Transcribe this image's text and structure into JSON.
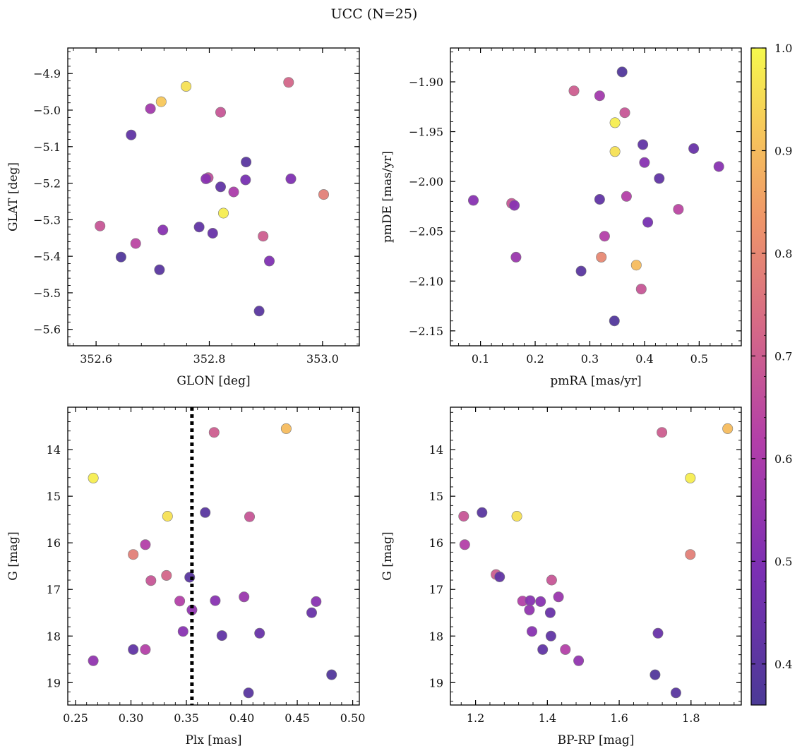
{
  "title": "UCC (N=25)",
  "colorbar": {
    "vmin": 0.36,
    "vmax": 1.0,
    "ticks": [
      "0.4",
      "0.5",
      "0.6",
      "0.7",
      "0.8",
      "0.9",
      "1.0"
    ],
    "colormap": "plasma"
  },
  "chart_data": [
    {
      "type": "scatter",
      "xlabel": "GLON [deg]",
      "ylabel": "GLAT [deg]",
      "xlim": [
        352.55,
        353.065
      ],
      "ylim": [
        -5.645,
        -4.83
      ],
      "x_ticks": [
        "352.6",
        "352.8",
        "353.0"
      ],
      "y_ticks": [
        "-4.9",
        "-5.0",
        "-5.1",
        "-5.2",
        "-5.3",
        "-5.4",
        "-5.5",
        "-5.6"
      ],
      "points": [
        {
          "x": 352.759,
          "y": -4.935,
          "p": 0.96
        },
        {
          "x": 352.715,
          "y": -4.977,
          "p": 0.92
        },
        {
          "x": 352.94,
          "y": -4.924,
          "p": 0.72
        },
        {
          "x": 352.696,
          "y": -4.996,
          "p": 0.58
        },
        {
          "x": 352.82,
          "y": -5.006,
          "p": 0.68
        },
        {
          "x": 352.662,
          "y": -5.068,
          "p": 0.42
        },
        {
          "x": 352.865,
          "y": -5.142,
          "p": 0.4
        },
        {
          "x": 352.798,
          "y": -5.185,
          "p": 0.66
        },
        {
          "x": 352.794,
          "y": -5.188,
          "p": 0.52
        },
        {
          "x": 352.864,
          "y": -5.191,
          "p": 0.48
        },
        {
          "x": 352.944,
          "y": -5.188,
          "p": 0.5
        },
        {
          "x": 352.82,
          "y": -5.21,
          "p": 0.42
        },
        {
          "x": 352.843,
          "y": -5.224,
          "p": 0.6
        },
        {
          "x": 353.002,
          "y": -5.231,
          "p": 0.78
        },
        {
          "x": 352.825,
          "y": -5.282,
          "p": 0.98
        },
        {
          "x": 352.607,
          "y": -5.317,
          "p": 0.68
        },
        {
          "x": 352.782,
          "y": -5.32,
          "p": 0.42
        },
        {
          "x": 352.718,
          "y": -5.328,
          "p": 0.52
        },
        {
          "x": 352.806,
          "y": -5.337,
          "p": 0.44
        },
        {
          "x": 352.895,
          "y": -5.345,
          "p": 0.7
        },
        {
          "x": 352.67,
          "y": -5.365,
          "p": 0.64
        },
        {
          "x": 352.644,
          "y": -5.402,
          "p": 0.38
        },
        {
          "x": 352.906,
          "y": -5.413,
          "p": 0.5
        },
        {
          "x": 352.712,
          "y": -5.437,
          "p": 0.4
        },
        {
          "x": 352.888,
          "y": -5.55,
          "p": 0.4
        }
      ]
    },
    {
      "type": "scatter",
      "xlabel": "pmRA [mas/yr]",
      "ylabel": "pmDE [mas/yr]",
      "xlim": [
        0.045,
        0.577
      ],
      "ylim": [
        -2.165,
        -1.866
      ],
      "x_ticks": [
        "0.1",
        "0.2",
        "0.3",
        "0.4",
        "0.5"
      ],
      "y_ticks": [
        "-1.90",
        "-1.95",
        "-2.00",
        "-2.05",
        "-2.10",
        "-2.15"
      ],
      "points": [
        {
          "x": 0.359,
          "y": -1.89,
          "p": 0.38
        },
        {
          "x": 0.271,
          "y": -1.909,
          "p": 0.7
        },
        {
          "x": 0.318,
          "y": -1.914,
          "p": 0.58
        },
        {
          "x": 0.364,
          "y": -1.931,
          "p": 0.68
        },
        {
          "x": 0.346,
          "y": -1.941,
          "p": 0.98
        },
        {
          "x": 0.397,
          "y": -1.963,
          "p": 0.42
        },
        {
          "x": 0.49,
          "y": -1.967,
          "p": 0.44
        },
        {
          "x": 0.346,
          "y": -1.97,
          "p": 0.96
        },
        {
          "x": 0.4,
          "y": -1.981,
          "p": 0.52
        },
        {
          "x": 0.536,
          "y": -1.985,
          "p": 0.52
        },
        {
          "x": 0.427,
          "y": -1.997,
          "p": 0.42
        },
        {
          "x": 0.367,
          "y": -2.015,
          "p": 0.62
        },
        {
          "x": 0.318,
          "y": -2.018,
          "p": 0.42
        },
        {
          "x": 0.087,
          "y": -2.019,
          "p": 0.52
        },
        {
          "x": 0.157,
          "y": -2.022,
          "p": 0.68
        },
        {
          "x": 0.162,
          "y": -2.024,
          "p": 0.52
        },
        {
          "x": 0.462,
          "y": -2.028,
          "p": 0.64
        },
        {
          "x": 0.406,
          "y": -2.041,
          "p": 0.48
        },
        {
          "x": 0.327,
          "y": -2.055,
          "p": 0.62
        },
        {
          "x": 0.165,
          "y": -2.076,
          "p": 0.56
        },
        {
          "x": 0.321,
          "y": -2.076,
          "p": 0.8
        },
        {
          "x": 0.385,
          "y": -2.084,
          "p": 0.9
        },
        {
          "x": 0.284,
          "y": -2.09,
          "p": 0.4
        },
        {
          "x": 0.394,
          "y": -2.108,
          "p": 0.68
        },
        {
          "x": 0.345,
          "y": -2.14,
          "p": 0.38
        }
      ]
    },
    {
      "type": "scatter",
      "xlabel": "Plx [mas]",
      "ylabel": "G [mag]",
      "xlim": [
        0.243,
        0.506
      ],
      "ylim": [
        19.48,
        13.09
      ],
      "y_inverted": true,
      "vline": 0.355,
      "x_ticks": [
        "0.25",
        "0.30",
        "0.35",
        "0.40",
        "0.45",
        "0.50"
      ],
      "y_ticks": [
        "14",
        "15",
        "16",
        "17",
        "18",
        "19"
      ],
      "points": [
        {
          "x": 0.44,
          "y": 13.55,
          "p": 0.9
        },
        {
          "x": 0.375,
          "y": 13.63,
          "p": 0.7
        },
        {
          "x": 0.266,
          "y": 14.61,
          "p": 0.98
        },
        {
          "x": 0.333,
          "y": 15.43,
          "p": 0.96
        },
        {
          "x": 0.367,
          "y": 15.35,
          "p": 0.4
        },
        {
          "x": 0.407,
          "y": 15.44,
          "p": 0.68
        },
        {
          "x": 0.313,
          "y": 16.04,
          "p": 0.62
        },
        {
          "x": 0.302,
          "y": 16.25,
          "p": 0.78
        },
        {
          "x": 0.332,
          "y": 16.7,
          "p": 0.72
        },
        {
          "x": 0.353,
          "y": 16.74,
          "p": 0.4
        },
        {
          "x": 0.318,
          "y": 16.81,
          "p": 0.68
        },
        {
          "x": 0.402,
          "y": 17.16,
          "p": 0.56
        },
        {
          "x": 0.344,
          "y": 17.25,
          "p": 0.62
        },
        {
          "x": 0.376,
          "y": 17.24,
          "p": 0.52
        },
        {
          "x": 0.467,
          "y": 17.26,
          "p": 0.52
        },
        {
          "x": 0.355,
          "y": 17.44,
          "p": 0.54
        },
        {
          "x": 0.463,
          "y": 17.5,
          "p": 0.44
        },
        {
          "x": 0.347,
          "y": 17.9,
          "p": 0.52
        },
        {
          "x": 0.416,
          "y": 17.94,
          "p": 0.44
        },
        {
          "x": 0.382,
          "y": 17.99,
          "p": 0.42
        },
        {
          "x": 0.302,
          "y": 18.29,
          "p": 0.42
        },
        {
          "x": 0.313,
          "y": 18.29,
          "p": 0.62
        },
        {
          "x": 0.266,
          "y": 18.53,
          "p": 0.54
        },
        {
          "x": 0.481,
          "y": 18.83,
          "p": 0.38
        },
        {
          "x": 0.406,
          "y": 19.22,
          "p": 0.4
        }
      ]
    },
    {
      "type": "scatter",
      "xlabel": "BP-RP [mag]",
      "ylabel": "G [mag]",
      "xlim": [
        1.13,
        1.94
      ],
      "ylim": [
        19.48,
        13.09
      ],
      "y_inverted": true,
      "x_ticks": [
        "1.2",
        "1.4",
        "1.6",
        "1.8"
      ],
      "y_ticks": [
        "14",
        "15",
        "16",
        "17",
        "18",
        "19"
      ],
      "points": [
        {
          "x": 1.902,
          "y": 13.55,
          "p": 0.9
        },
        {
          "x": 1.719,
          "y": 13.63,
          "p": 0.7
        },
        {
          "x": 1.798,
          "y": 14.61,
          "p": 0.98
        },
        {
          "x": 1.167,
          "y": 15.43,
          "p": 0.68
        },
        {
          "x": 1.218,
          "y": 15.35,
          "p": 0.4
        },
        {
          "x": 1.315,
          "y": 15.43,
          "p": 0.96
        },
        {
          "x": 1.17,
          "y": 16.04,
          "p": 0.62
        },
        {
          "x": 1.798,
          "y": 16.25,
          "p": 0.78
        },
        {
          "x": 1.257,
          "y": 16.68,
          "p": 0.7
        },
        {
          "x": 1.267,
          "y": 16.73,
          "p": 0.42
        },
        {
          "x": 1.412,
          "y": 16.8,
          "p": 0.68
        },
        {
          "x": 1.431,
          "y": 17.16,
          "p": 0.56
        },
        {
          "x": 1.331,
          "y": 17.25,
          "p": 0.62
        },
        {
          "x": 1.352,
          "y": 17.24,
          "p": 0.52
        },
        {
          "x": 1.381,
          "y": 17.26,
          "p": 0.52
        },
        {
          "x": 1.35,
          "y": 17.44,
          "p": 0.54
        },
        {
          "x": 1.408,
          "y": 17.5,
          "p": 0.44
        },
        {
          "x": 1.357,
          "y": 17.9,
          "p": 0.52
        },
        {
          "x": 1.708,
          "y": 17.94,
          "p": 0.44
        },
        {
          "x": 1.41,
          "y": 18.0,
          "p": 0.42
        },
        {
          "x": 1.387,
          "y": 18.29,
          "p": 0.42
        },
        {
          "x": 1.45,
          "y": 18.29,
          "p": 0.62
        },
        {
          "x": 1.487,
          "y": 18.53,
          "p": 0.54
        },
        {
          "x": 1.7,
          "y": 18.83,
          "p": 0.38
        },
        {
          "x": 1.758,
          "y": 19.22,
          "p": 0.4
        }
      ]
    }
  ]
}
